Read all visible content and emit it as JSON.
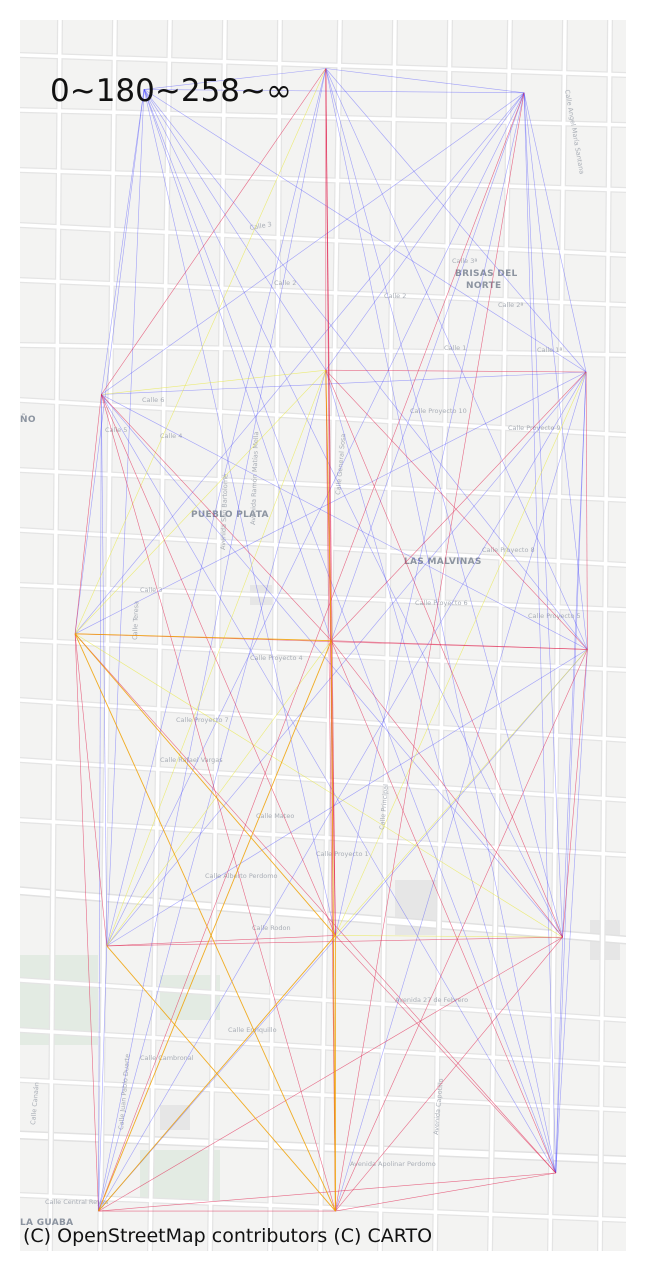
{
  "legend_title": "0~180~258~∞",
  "attribution": "(C) OpenStreetMap contributors (C) CARTO",
  "colors": {
    "land": "#f3f3f2",
    "street": "#ffffff",
    "street_casing": "#e1e1e1",
    "block": "#e6e6e6",
    "park": "#e3ebe3",
    "label": "#a9aeb6",
    "band_low": "#3b3bff",
    "band_mid": "#e8e840",
    "band_high": "#e0204d",
    "band_max": "#f0a000"
  },
  "area_labels": [
    "BRISAS DEL",
    "NORTE",
    "PUEBLO PLATA",
    "LAS MALVINAS",
    "LA GUABA",
    "ÑO"
  ],
  "street_labels": [
    "Calle 3",
    "Calle 2",
    "Calle 1",
    "Calle 3ª",
    "Calle 2ª",
    "Calle 1ª",
    "Calle 6",
    "Calle 5",
    "Calle 4",
    "Calle 3",
    "Calle 2",
    "Calle Proyecto 10",
    "Calle Proyecto 9",
    "Calle Proyecto 8",
    "Calle Proyecto 7",
    "Calle Proyecto 6",
    "Calle Proyecto 5",
    "Calle Proyecto 4",
    "Calle Proyecto 1",
    "Calle Rafael Vargas",
    "Calle Mateo",
    "Calle Alberto Perdomo",
    "Calle Rodon",
    "Avenida 27 de Febrero",
    "Calle Enriquillo",
    "Calle Cambronal",
    "Calle Central Reyes",
    "Avenida Apolinar Perdomo",
    "Calle Angel María Santana",
    "Avenida San Bartolomé",
    "Avenida Ramón Matías Mella",
    "Calle General Sosa",
    "Calle Principal",
    "Avenida Capotillo",
    "Calle Teresa",
    "Calle Juan Pablo Duarte",
    "Calle Canaán"
  ],
  "network": {
    "nodes": [
      {
        "id": "n1",
        "lon": -70.118,
        "lat": 18.542
      },
      {
        "id": "n2",
        "lon": -70.1048,
        "lat": 18.5432
      },
      {
        "id": "n3",
        "lon": -70.0904,
        "lat": 18.5418
      },
      {
        "id": "n4",
        "lon": -70.1211,
        "lat": 18.5244
      },
      {
        "id": "n5",
        "lon": -70.1048,
        "lat": 18.5258
      },
      {
        "id": "n6",
        "lon": -70.0859,
        "lat": 18.5257
      },
      {
        "id": "n7",
        "lon": -70.123,
        "lat": 18.5106
      },
      {
        "id": "n8",
        "lon": -70.1044,
        "lat": 18.5102
      },
      {
        "id": "n9",
        "lon": -70.0858,
        "lat": 18.5097
      },
      {
        "id": "n10",
        "lon": -70.1207,
        "lat": 18.4926
      },
      {
        "id": "n11",
        "lon": -70.1041,
        "lat": 18.4932
      },
      {
        "id": "n12",
        "lon": -70.0876,
        "lat": 18.4931
      },
      {
        "id": "n13",
        "lon": -70.1213,
        "lat": 18.4773
      },
      {
        "id": "n14",
        "lon": -70.1041,
        "lat": 18.4773
      },
      {
        "id": "n15",
        "lon": -70.0881,
        "lat": 18.4795
      }
    ],
    "edges": [
      {
        "from": "n7",
        "to": "n14",
        "band": "max"
      },
      {
        "from": "n7",
        "to": "n8",
        "band": "max"
      },
      {
        "from": "n8",
        "to": "n14",
        "band": "max"
      },
      {
        "from": "n11",
        "to": "n13",
        "band": "max"
      },
      {
        "from": "n11",
        "to": "n14",
        "band": "max"
      },
      {
        "from": "n7",
        "to": "n11",
        "band": "max"
      },
      {
        "from": "n8",
        "to": "n13",
        "band": "max"
      },
      {
        "from": "n10",
        "to": "n14",
        "band": "max"
      },
      {
        "from": "n5",
        "to": "n8",
        "band": "max"
      },
      {
        "from": "n1",
        "to": "n2",
        "band": "low"
      },
      {
        "from": "n2",
        "to": "n3",
        "band": "low"
      },
      {
        "from": "n1",
        "to": "n4",
        "band": "low"
      },
      {
        "from": "n1",
        "to": "n5",
        "band": "low"
      },
      {
        "from": "n1",
        "to": "n6",
        "band": "low"
      },
      {
        "from": "n1",
        "to": "n7",
        "band": "low"
      },
      {
        "from": "n1",
        "to": "n8",
        "band": "low"
      },
      {
        "from": "n1",
        "to": "n9",
        "band": "low"
      },
      {
        "from": "n1",
        "to": "n10",
        "band": "low"
      },
      {
        "from": "n1",
        "to": "n11",
        "band": "low"
      },
      {
        "from": "n1",
        "to": "n12",
        "band": "low"
      },
      {
        "from": "n1",
        "to": "n15",
        "band": "low"
      },
      {
        "from": "n1",
        "to": "n3",
        "band": "low"
      },
      {
        "from": "n3",
        "to": "n4",
        "band": "low"
      },
      {
        "from": "n3",
        "to": "n5",
        "band": "low"
      },
      {
        "from": "n3",
        "to": "n6",
        "band": "low"
      },
      {
        "from": "n3",
        "to": "n7",
        "band": "low"
      },
      {
        "from": "n3",
        "to": "n8",
        "band": "low"
      },
      {
        "from": "n3",
        "to": "n9",
        "band": "low"
      },
      {
        "from": "n3",
        "to": "n10",
        "band": "low"
      },
      {
        "from": "n3",
        "to": "n11",
        "band": "low"
      },
      {
        "from": "n3",
        "to": "n12",
        "band": "low"
      },
      {
        "from": "n3",
        "to": "n15",
        "band": "low"
      },
      {
        "from": "n2",
        "to": "n6",
        "band": "low"
      },
      {
        "from": "n2",
        "to": "n9",
        "band": "low"
      },
      {
        "from": "n2",
        "to": "n12",
        "band": "low"
      },
      {
        "from": "n2",
        "to": "n10",
        "band": "low"
      },
      {
        "from": "n2",
        "to": "n13",
        "band": "low"
      },
      {
        "from": "n4",
        "to": "n6",
        "band": "low"
      },
      {
        "from": "n4",
        "to": "n9",
        "band": "low"
      },
      {
        "from": "n4",
        "to": "n12",
        "band": "low"
      },
      {
        "from": "n4",
        "to": "n15",
        "band": "low"
      },
      {
        "from": "n4",
        "to": "n10",
        "band": "low"
      },
      {
        "from": "n4",
        "to": "n13",
        "band": "low"
      },
      {
        "from": "n6",
        "to": "n7",
        "band": "low"
      },
      {
        "from": "n6",
        "to": "n10",
        "band": "low"
      },
      {
        "from": "n6",
        "to": "n13",
        "band": "low"
      },
      {
        "from": "n6",
        "to": "n14",
        "band": "low"
      },
      {
        "from": "n6",
        "to": "n12",
        "band": "low"
      },
      {
        "from": "n6",
        "to": "n15",
        "band": "low"
      },
      {
        "from": "n9",
        "to": "n10",
        "band": "low"
      },
      {
        "from": "n9",
        "to": "n13",
        "band": "low"
      },
      {
        "from": "n9",
        "to": "n15",
        "band": "low"
      },
      {
        "from": "n12",
        "to": "n15",
        "band": "low"
      },
      {
        "from": "n10",
        "to": "n13",
        "band": "low"
      },
      {
        "from": "n5",
        "to": "n15",
        "band": "low"
      },
      {
        "from": "n5",
        "to": "n13",
        "band": "low"
      },
      {
        "from": "n2",
        "to": "n15",
        "band": "low"
      },
      {
        "from": "n2",
        "to": "n7",
        "band": "mid"
      },
      {
        "from": "n5",
        "to": "n7",
        "band": "mid"
      },
      {
        "from": "n5",
        "to": "n10",
        "band": "mid"
      },
      {
        "from": "n8",
        "to": "n10",
        "band": "mid"
      },
      {
        "from": "n9",
        "to": "n11",
        "band": "mid"
      },
      {
        "from": "n11",
        "to": "n12",
        "band": "mid"
      },
      {
        "from": "n6",
        "to": "n11",
        "band": "mid"
      },
      {
        "from": "n7",
        "to": "n12",
        "band": "mid"
      },
      {
        "from": "n4",
        "to": "n5",
        "band": "mid"
      },
      {
        "from": "n2",
        "to": "n4",
        "band": "high"
      },
      {
        "from": "n2",
        "to": "n5",
        "band": "high"
      },
      {
        "from": "n2",
        "to": "n8",
        "band": "high"
      },
      {
        "from": "n2",
        "to": "n11",
        "band": "high"
      },
      {
        "from": "n2",
        "to": "n14",
        "band": "high"
      },
      {
        "from": "n4",
        "to": "n7",
        "band": "high"
      },
      {
        "from": "n4",
        "to": "n8",
        "band": "high"
      },
      {
        "from": "n4",
        "to": "n11",
        "band": "high"
      },
      {
        "from": "n4",
        "to": "n14",
        "band": "high"
      },
      {
        "from": "n5",
        "to": "n6",
        "band": "high"
      },
      {
        "from": "n5",
        "to": "n9",
        "band": "high"
      },
      {
        "from": "n5",
        "to": "n11",
        "band": "high"
      },
      {
        "from": "n5",
        "to": "n12",
        "band": "high"
      },
      {
        "from": "n5",
        "to": "n14",
        "band": "high"
      },
      {
        "from": "n6",
        "to": "n8",
        "band": "high"
      },
      {
        "from": "n6",
        "to": "n9",
        "band": "high"
      },
      {
        "from": "n7",
        "to": "n9",
        "band": "high"
      },
      {
        "from": "n7",
        "to": "n10",
        "band": "high"
      },
      {
        "from": "n7",
        "to": "n13",
        "band": "high"
      },
      {
        "from": "n7",
        "to": "n15",
        "band": "high"
      },
      {
        "from": "n8",
        "to": "n9",
        "band": "high"
      },
      {
        "from": "n8",
        "to": "n11",
        "band": "high"
      },
      {
        "from": "n8",
        "to": "n12",
        "band": "high"
      },
      {
        "from": "n8",
        "to": "n15",
        "band": "high"
      },
      {
        "from": "n9",
        "to": "n12",
        "band": "high"
      },
      {
        "from": "n9",
        "to": "n14",
        "band": "high"
      },
      {
        "from": "n10",
        "to": "n11",
        "band": "high"
      },
      {
        "from": "n10",
        "to": "n12",
        "band": "high"
      },
      {
        "from": "n11",
        "to": "n15",
        "band": "high"
      },
      {
        "from": "n12",
        "to": "n13",
        "band": "high"
      },
      {
        "from": "n12",
        "to": "n14",
        "band": "high"
      },
      {
        "from": "n13",
        "to": "n14",
        "band": "high"
      },
      {
        "from": "n14",
        "to": "n15",
        "band": "high"
      },
      {
        "from": "n13",
        "to": "n15",
        "band": "high"
      },
      {
        "from": "n3",
        "to": "n14",
        "band": "high"
      },
      {
        "from": "n3",
        "to": "n13",
        "band": "high"
      }
    ]
  }
}
